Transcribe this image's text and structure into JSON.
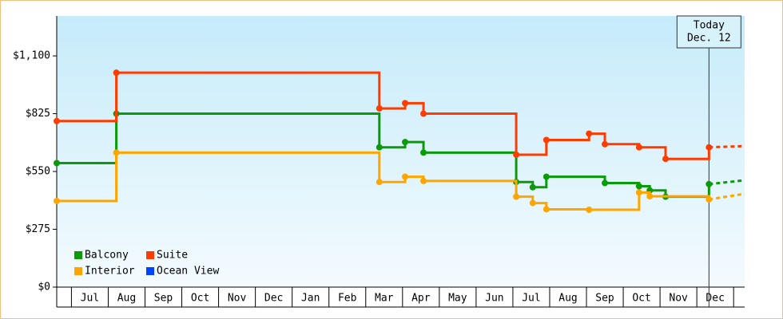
{
  "chart_data": {
    "type": "step",
    "xlim": [
      -0.4,
      18.3
    ],
    "xticks": [
      {
        "value": 0.5,
        "label": "Jul"
      },
      {
        "value": 1.5,
        "label": "Aug"
      },
      {
        "value": 2.5,
        "label": "Sep"
      },
      {
        "value": 3.5,
        "label": "Oct"
      },
      {
        "value": 4.5,
        "label": "Nov"
      },
      {
        "value": 5.5,
        "label": "Dec"
      },
      {
        "value": 6.5,
        "label": "Jan"
      },
      {
        "value": 7.5,
        "label": "Feb"
      },
      {
        "value": 8.5,
        "label": "Mar"
      },
      {
        "value": 9.5,
        "label": "Apr"
      },
      {
        "value": 10.5,
        "label": "May"
      },
      {
        "value": 11.5,
        "label": "Jun"
      },
      {
        "value": 12.5,
        "label": "Jul"
      },
      {
        "value": 13.5,
        "label": "Aug"
      },
      {
        "value": 14.5,
        "label": "Sep"
      },
      {
        "value": 15.5,
        "label": "Oct"
      },
      {
        "value": 16.5,
        "label": "Nov"
      },
      {
        "value": 17.5,
        "label": "Dec"
      }
    ],
    "ylim": [
      0,
      1290
    ],
    "yticks": [
      {
        "value": 0,
        "label": "$0"
      },
      {
        "value": 275,
        "label": "$275"
      },
      {
        "value": 550,
        "label": "$550"
      },
      {
        "value": 825,
        "label": "$825"
      },
      {
        "value": 1100,
        "label": "$1,100"
      }
    ],
    "legend": "lower-left",
    "annotation": {
      "x": 17.33,
      "lines": [
        "Today",
        "Dec. 12"
      ]
    },
    "series": [
      {
        "name": "Balcony",
        "color": "#0a9a0a",
        "x": [
          -0.4,
          1.22,
          8.37,
          9.07,
          9.57,
          12.09,
          12.54,
          12.91,
          14.5,
          15.43,
          15.72,
          16.15,
          17.33
        ],
        "values": [
          590,
          825,
          665,
          690,
          640,
          500,
          475,
          525,
          495,
          480,
          460,
          430,
          490
        ],
        "forecast": {
          "x": 18.3,
          "value": 508
        }
      },
      {
        "name": "Suite",
        "color": "#ff3c00",
        "x": [
          -0.4,
          1.22,
          8.37,
          9.07,
          9.57,
          12.09,
          12.91,
          14.07,
          14.5,
          15.43,
          16.15,
          17.33
        ],
        "values": [
          790,
          1020,
          850,
          875,
          825,
          630,
          700,
          730,
          680,
          665,
          610,
          665
        ],
        "forecast": {
          "x": 18.3,
          "value": 671
        }
      },
      {
        "name": "Interior",
        "color": "#ffa500",
        "x": [
          -0.4,
          1.22,
          8.37,
          9.07,
          9.57,
          12.09,
          12.54,
          12.91,
          14.07,
          15.43,
          15.72,
          17.33
        ],
        "values": [
          410,
          640,
          500,
          525,
          505,
          430,
          400,
          370,
          368,
          450,
          432,
          417
        ],
        "forecast": {
          "x": 18.3,
          "value": 444
        }
      },
      {
        "name": "Ocean View",
        "color": "#0044ff",
        "x": [],
        "values": []
      }
    ]
  }
}
